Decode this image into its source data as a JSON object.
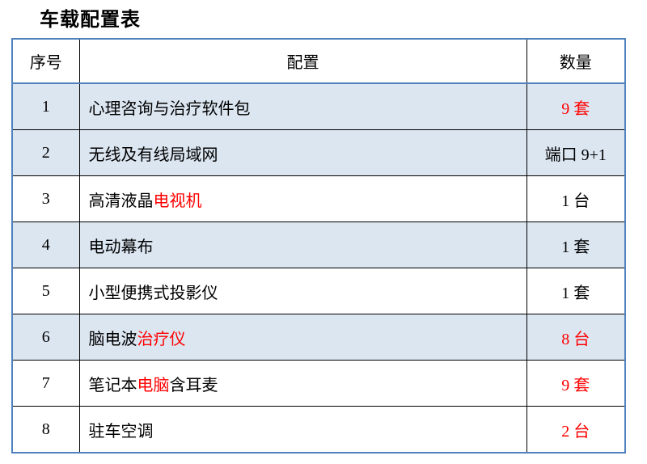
{
  "title": "车载配置表",
  "colors": {
    "outer_border_blue": "#4f81bd",
    "row_shade_blue": "#dce6f1",
    "highlight_red": "#ff0000",
    "text_black": "#000000",
    "inner_grid_black": "#000000"
  },
  "table": {
    "headers": [
      "序号",
      "配置",
      "数量"
    ],
    "rows": [
      {
        "no": "1",
        "shaded": true,
        "config": [
          {
            "t": "心理咨询与治疗软件包",
            "red": false
          }
        ],
        "qty": [
          {
            "t": "9 套",
            "red": true
          }
        ]
      },
      {
        "no": "2",
        "shaded": true,
        "config": [
          {
            "t": "无线及有线局域网",
            "red": false
          }
        ],
        "qty": [
          {
            "t": "端口 9+1",
            "red": false
          }
        ]
      },
      {
        "no": "3",
        "shaded": false,
        "config": [
          {
            "t": "高清液晶",
            "red": false
          },
          {
            "t": "电视机",
            "red": true
          }
        ],
        "qty": [
          {
            "t": "1 台",
            "red": false
          }
        ]
      },
      {
        "no": "4",
        "shaded": true,
        "config": [
          {
            "t": "电动幕布",
            "red": false
          }
        ],
        "qty": [
          {
            "t": "1 套",
            "red": false
          }
        ]
      },
      {
        "no": "5",
        "shaded": false,
        "config": [
          {
            "t": "小型便携式投影仪",
            "red": false
          }
        ],
        "qty": [
          {
            "t": "1 套",
            "red": false
          }
        ]
      },
      {
        "no": "6",
        "shaded": true,
        "config": [
          {
            "t": "脑电波",
            "red": false
          },
          {
            "t": "治疗仪",
            "red": true
          }
        ],
        "qty": [
          {
            "t": "8 台",
            "red": true
          }
        ]
      },
      {
        "no": "7",
        "shaded": false,
        "config": [
          {
            "t": "笔记本",
            "red": false
          },
          {
            "t": "电脑",
            "red": true
          },
          {
            "t": "含耳麦",
            "red": false
          }
        ],
        "qty": [
          {
            "t": "9 套",
            "red": true
          }
        ]
      },
      {
        "no": "8",
        "shaded": false,
        "config": [
          {
            "t": "驻车空调",
            "red": false
          }
        ],
        "qty": [
          {
            "t": "2 台",
            "red": true
          }
        ]
      }
    ]
  }
}
